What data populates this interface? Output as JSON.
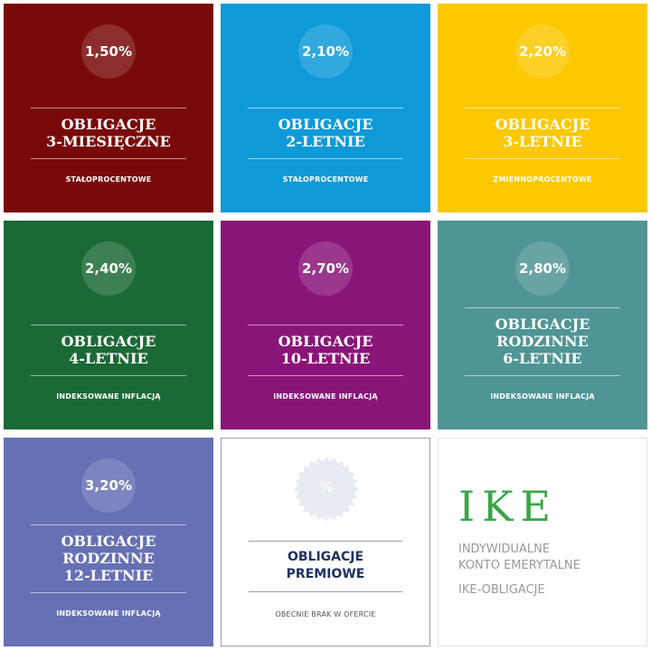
{
  "tiles": [
    {
      "rate": "1,50%",
      "title": "OBLIGACJE\n3-MIESIĘCZNE",
      "subtitle": "STAŁOPROCENTOWE",
      "color": "#7a0a0a"
    },
    {
      "rate": "2,10%",
      "title": "OBLIGACJE\n2-LETNIE",
      "subtitle": "STAŁOPROCENTOWE",
      "color": "#0e9ad9"
    },
    {
      "rate": "2,20%",
      "title": "OBLIGACJE\n3-LETNIE",
      "subtitle": "ZMIENNOPROCENTOWE",
      "color": "#fcc800"
    },
    {
      "rate": "2,40%",
      "title": "OBLIGACJE\n4-LETNIE",
      "subtitle": "INDEKSOWANE INFLACJĄ",
      "color": "#1b6a35"
    },
    {
      "rate": "2,70%",
      "title": "OBLIGACJE\n10-LETNIE",
      "subtitle": "INDEKSOWANE INFLACJĄ",
      "color": "#8a1579"
    },
    {
      "rate": "2,80%",
      "title": "OBLIGACJE\nRODZINNE\n6-LETNIE",
      "subtitle": "INDEKSOWANE INFLACJĄ",
      "color": "#4f9595"
    },
    {
      "rate": "3,20%",
      "title": "OBLIGACJE\nRODZINNE\n12-LETNIE",
      "subtitle": "INDEKSOWANE INFLACJĄ",
      "color": "#6670b4"
    }
  ],
  "premium": {
    "symbol": "%",
    "title": "OBLIGACJE\nPREMIOWE",
    "subtitle": "OBECNIE BRAK W OFERCIE",
    "icon": "percent-badge-icon"
  },
  "ike": {
    "logo": "IKE",
    "line1": "INDYWIDUALNE",
    "line2": "KONTO EMERYTALNE",
    "line3": "IKE-OBLIGACJE",
    "color": "#3aa648"
  }
}
